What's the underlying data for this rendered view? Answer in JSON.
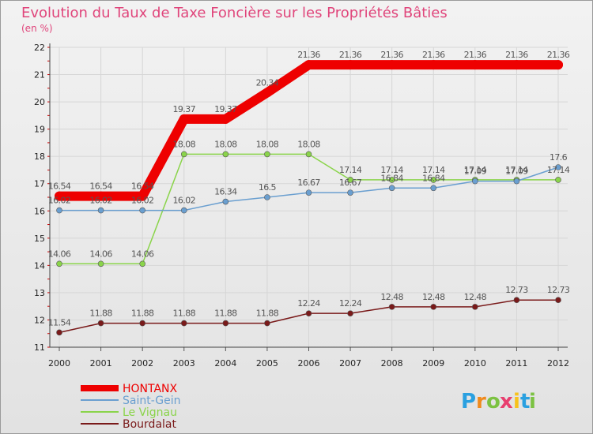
{
  "chart_data": {
    "type": "line",
    "title": "Evolution du Taux de Taxe Foncière sur les Propriétés Bâties",
    "subtitle": "(en %)",
    "x": [
      "2000",
      "2001",
      "2002",
      "2003",
      "2004",
      "2005",
      "2006",
      "2007",
      "2008",
      "2009",
      "2010",
      "2011",
      "2012"
    ],
    "ylim": [
      11,
      22
    ],
    "yticks": [
      11,
      12,
      13,
      14,
      15,
      16,
      17,
      18,
      19,
      20,
      21,
      22
    ],
    "grid": true,
    "legend_position": "bottom-left",
    "series": [
      {
        "name": "HONTANX",
        "color": "#ee0000",
        "values": [
          16.54,
          16.54,
          16.54,
          19.37,
          19.37,
          20.34,
          21.36,
          21.36,
          21.36,
          21.36,
          21.36,
          21.36,
          21.36
        ],
        "labels": [
          "16.54",
          "16.54",
          "16.54",
          "19.37",
          "19.37",
          "20.34",
          "21.36",
          "21.36",
          "21.36",
          "21.36",
          "21.36",
          "21.36",
          "21.36"
        ]
      },
      {
        "name": "Saint-Gein",
        "color": "#6a9fd0",
        "values": [
          16.02,
          16.02,
          16.02,
          16.02,
          16.34,
          16.5,
          16.67,
          16.67,
          16.84,
          16.84,
          17.09,
          17.09,
          17.6
        ],
        "labels": [
          "16.02",
          "16.02",
          "16.02",
          "16.02",
          "16.34",
          "16.5",
          "16.67",
          "16.67",
          "16.84",
          "16.84",
          "17.09",
          "17.09",
          "17.6"
        ]
      },
      {
        "name": "Le Vignau",
        "color": "#8ad44a",
        "values": [
          14.06,
          14.06,
          14.06,
          18.08,
          18.08,
          18.08,
          18.08,
          17.14,
          17.14,
          17.14,
          17.14,
          17.14,
          17.14
        ],
        "labels": [
          "14.06",
          "14.06",
          "14.06",
          "18.08",
          "18.08",
          "18.08",
          "18.08",
          "17.14",
          "17.14",
          "17.14",
          "17.14",
          "17.14",
          "17.14"
        ]
      },
      {
        "name": "Bourdalat",
        "color": "#7a1a1a",
        "values": [
          11.54,
          11.88,
          11.88,
          11.88,
          11.88,
          11.88,
          12.24,
          12.24,
          12.48,
          12.48,
          12.48,
          12.73,
          12.73
        ],
        "labels": [
          "11.54",
          "11.88",
          "11.88",
          "11.88",
          "11.88",
          "11.88",
          "12.24",
          "12.24",
          "12.48",
          "12.48",
          "12.48",
          "12.73",
          "12.73"
        ]
      }
    ]
  },
  "brand": {
    "letters": [
      "P",
      "r",
      "o",
      "x",
      "i",
      "t",
      "i"
    ],
    "colors": [
      "#2aa0e0",
      "#f08a1c",
      "#7cc242",
      "#e83f6f",
      "#f7c21c",
      "#2aa0e0",
      "#7cc242"
    ]
  }
}
